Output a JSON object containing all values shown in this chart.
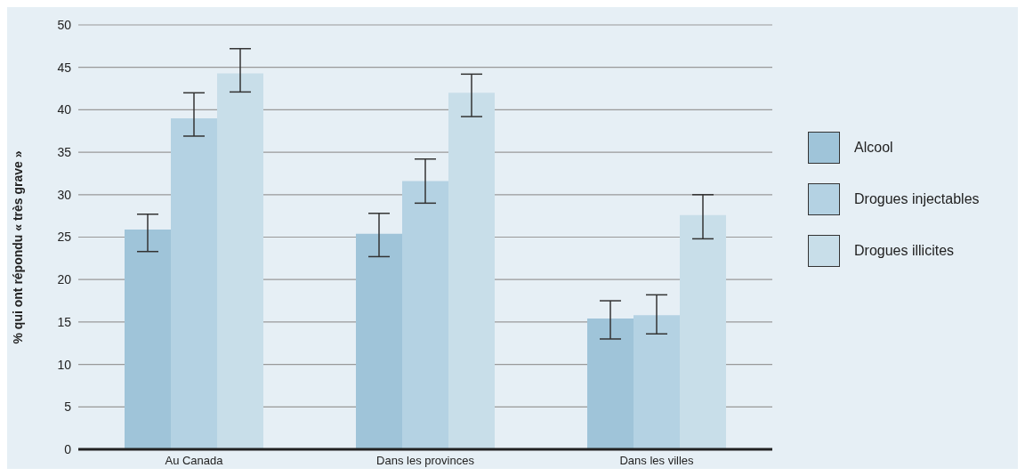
{
  "chart_data": {
    "type": "bar",
    "ylabel": "% qui ont répondu « très grave »",
    "categories": [
      "Au Canada",
      "Dans les provinces",
      "Dans les villes"
    ],
    "series": [
      {
        "name": "Alcool",
        "color": "#9fc4d9",
        "values": [
          25.9,
          25.4,
          15.4
        ],
        "errors": [
          [
            23.3,
            27.7
          ],
          [
            22.7,
            27.8
          ],
          [
            13.0,
            17.5
          ]
        ]
      },
      {
        "name": "Drogues injectables",
        "color": "#b4d2e3",
        "values": [
          39.0,
          31.6,
          15.8
        ],
        "errors": [
          [
            36.9,
            42.0
          ],
          [
            29.0,
            34.2
          ],
          [
            13.6,
            18.2
          ]
        ]
      },
      {
        "name": "Drogues illicites",
        "color": "#c8dee9",
        "values": [
          44.3,
          42.0,
          27.6
        ],
        "errors": [
          [
            42.1,
            47.2
          ],
          [
            39.2,
            44.2
          ],
          [
            24.8,
            30.0
          ]
        ]
      }
    ],
    "ylim": [
      0,
      50
    ],
    "yticks": [
      0,
      5,
      10,
      15,
      20,
      25,
      30,
      35,
      40,
      45,
      50
    ],
    "grid": "y",
    "legend": "right"
  }
}
